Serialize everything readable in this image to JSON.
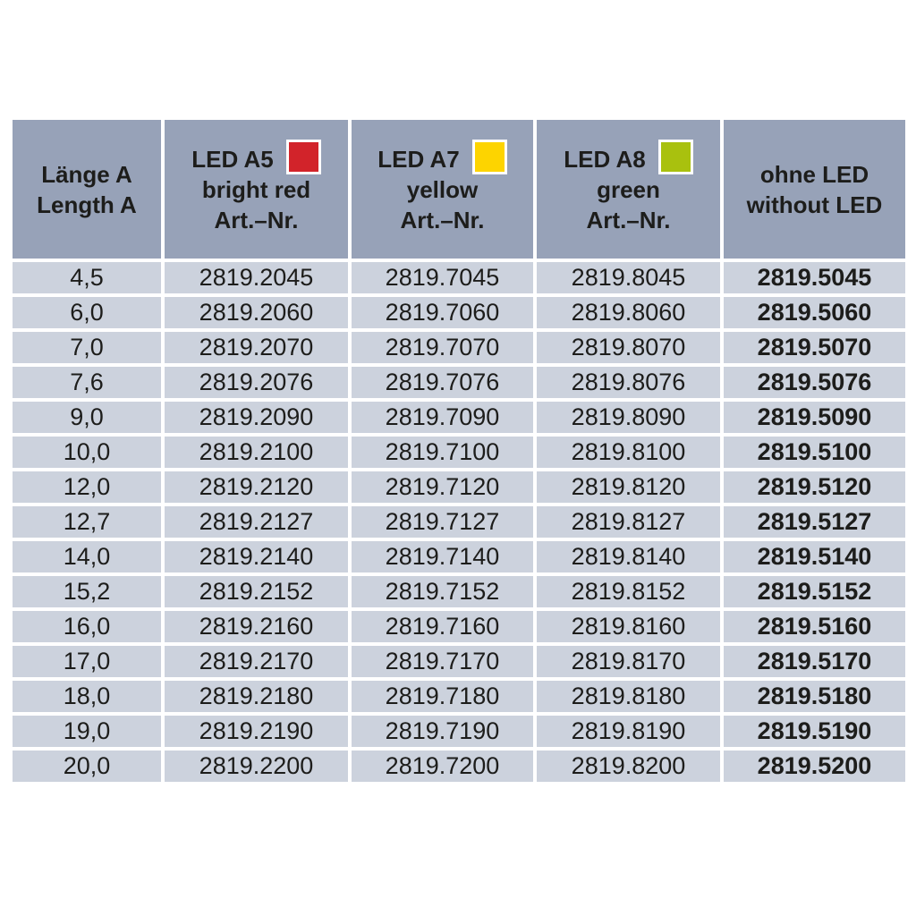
{
  "table": {
    "headers": {
      "length": {
        "line1": "Länge A",
        "line2": "Length A"
      },
      "led_a5": {
        "title": "LED A5",
        "color_name": "bright red",
        "art": "Art.–Nr.",
        "swatch": "#d2232a"
      },
      "led_a7": {
        "title": "LED A7",
        "color_name": "yellow",
        "art": "Art.–Nr.",
        "swatch": "#fdd400"
      },
      "led_a8": {
        "title": "LED A8",
        "color_name": "green",
        "art": "Art.–Nr.",
        "swatch": "#a9c10e"
      },
      "no_led": {
        "line1": "ohne LED",
        "line2": "without LED"
      }
    },
    "rows": [
      [
        "4,5",
        "2819.2045",
        "2819.7045",
        "2819.8045",
        "2819.5045"
      ],
      [
        "6,0",
        "2819.2060",
        "2819.7060",
        "2819.8060",
        "2819.5060"
      ],
      [
        "7,0",
        "2819.2070",
        "2819.7070",
        "2819.8070",
        "2819.5070"
      ],
      [
        "7,6",
        "2819.2076",
        "2819.7076",
        "2819.8076",
        "2819.5076"
      ],
      [
        "9,0",
        "2819.2090",
        "2819.7090",
        "2819.8090",
        "2819.5090"
      ],
      [
        "10,0",
        "2819.2100",
        "2819.7100",
        "2819.8100",
        "2819.5100"
      ],
      [
        "12,0",
        "2819.2120",
        "2819.7120",
        "2819.8120",
        "2819.5120"
      ],
      [
        "12,7",
        "2819.2127",
        "2819.7127",
        "2819.8127",
        "2819.5127"
      ],
      [
        "14,0",
        "2819.2140",
        "2819.7140",
        "2819.8140",
        "2819.5140"
      ],
      [
        "15,2",
        "2819.2152",
        "2819.7152",
        "2819.8152",
        "2819.5152"
      ],
      [
        "16,0",
        "2819.2160",
        "2819.7160",
        "2819.8160",
        "2819.5160"
      ],
      [
        "17,0",
        "2819.2170",
        "2819.7170",
        "2819.8170",
        "2819.5170"
      ],
      [
        "18,0",
        "2819.2180",
        "2819.7180",
        "2819.8180",
        "2819.5180"
      ],
      [
        "19,0",
        "2819.2190",
        "2819.7190",
        "2819.8190",
        "2819.5190"
      ],
      [
        "20,0",
        "2819.2200",
        "2819.7200",
        "2819.8200",
        "2819.5200"
      ]
    ]
  },
  "colors": {
    "header_bg": "#97a2b8",
    "row_bg": "#ccd2dd",
    "gridline": "#ffffff",
    "text": "#1d1d1b",
    "led_red": "#d2232a",
    "led_yellow": "#fdd400",
    "led_green": "#a9c10e"
  }
}
